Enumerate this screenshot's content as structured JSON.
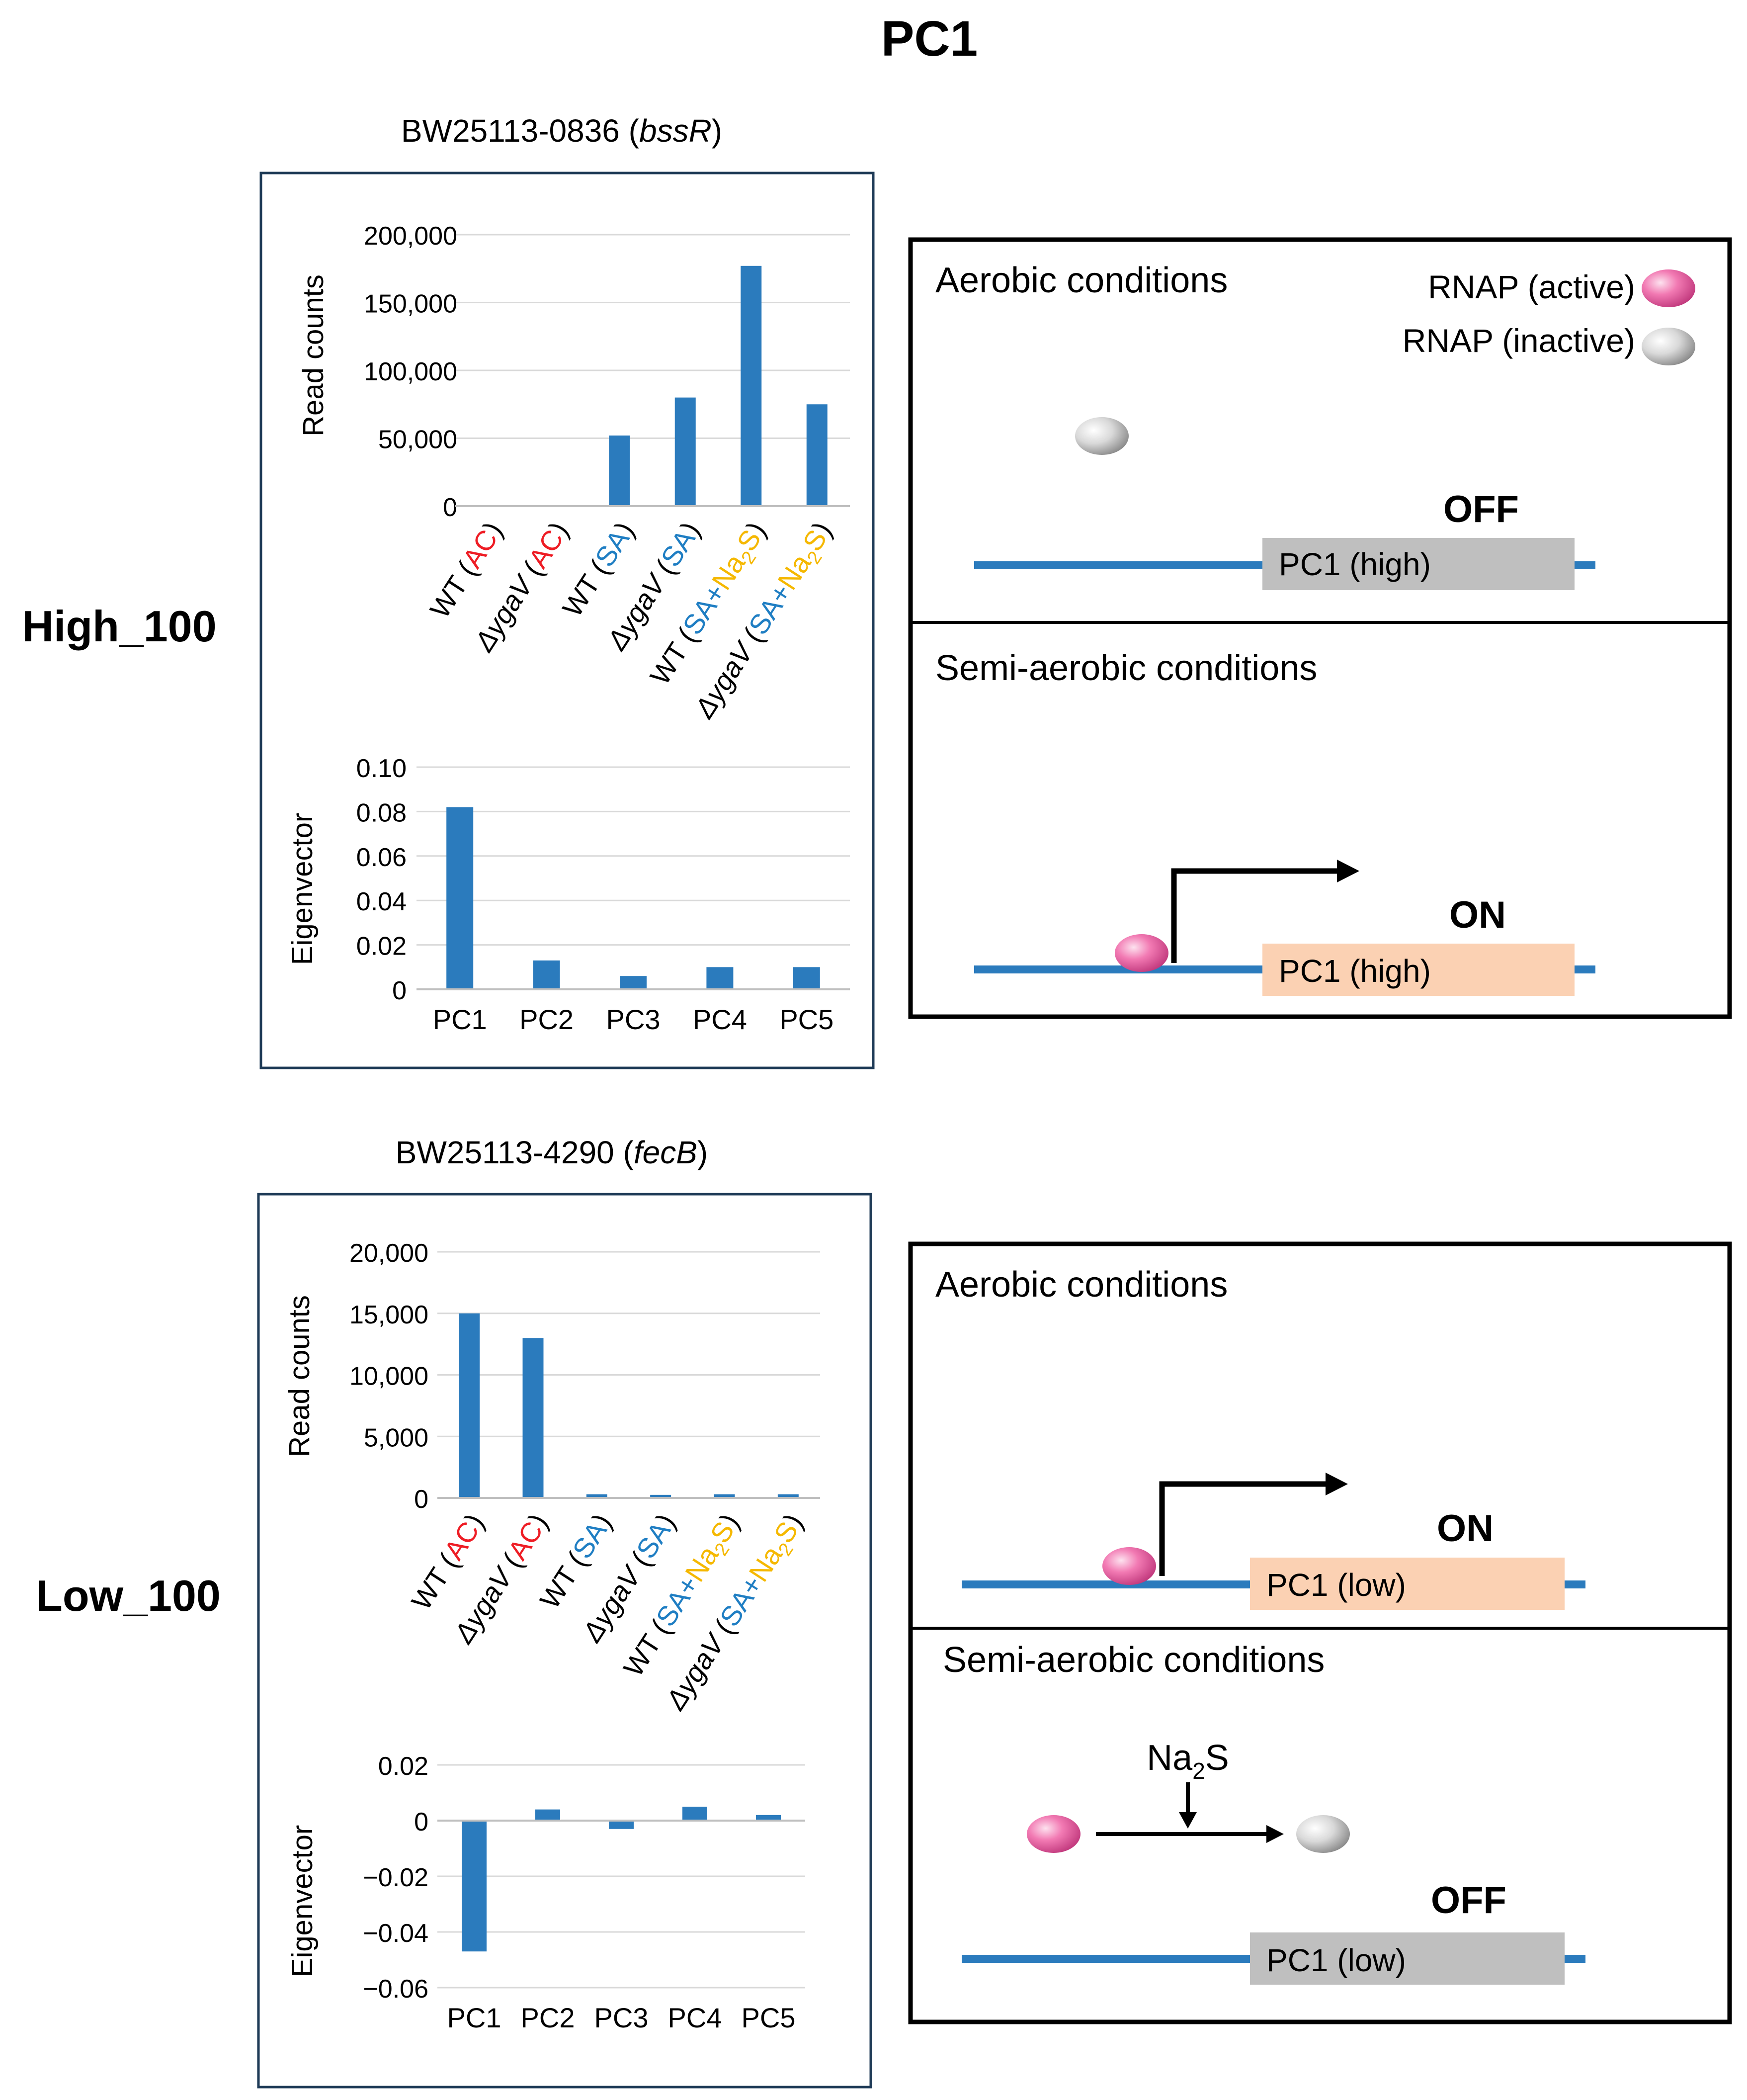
{
  "title": "PC1",
  "rows": [
    {
      "label": "High_100",
      "gene_title": {
        "prefix": "BW25113-0836 (",
        "gene": "bssR",
        "suffix": ")"
      },
      "read_ylabel": "Read counts",
      "eig_ylabel": "Eigenvector",
      "schematic": {
        "panel1": {
          "title": "Aerobic conditions",
          "state": "OFF",
          "gene_label": "PC1 (high)"
        },
        "panel2": {
          "title": "Semi-aerobic conditions",
          "state": "ON",
          "gene_label": "PC1 (high)"
        }
      }
    },
    {
      "label": "Low_100",
      "gene_title": {
        "prefix": "BW25113-4290 (",
        "gene": "fecB",
        "suffix": ")"
      },
      "read_ylabel": "Read counts",
      "eig_ylabel": "Eigenvector",
      "schematic": {
        "panel1": {
          "title": "Aerobic conditions",
          "state": "ON",
          "gene_label": "PC1 (low)"
        },
        "panel2": {
          "title": "Semi-aerobic conditions",
          "state": "OFF",
          "gene_label": "PC1 (low)",
          "inhibitor": {
            "base": "Na",
            "sub": "2",
            "tail": "S"
          }
        }
      }
    }
  ],
  "legend": {
    "active": "RNAP (active)",
    "inactive": "RNAP (inactive)"
  },
  "colors": {
    "bar": "#2b7bbd",
    "ac": "#ee1c24",
    "sa": "#1f7ec3",
    "na2s": "#f5b800",
    "active_rnap": "#f27ab3",
    "inactive_rnap": "#cfcfcf",
    "dna": "#2b7bbd",
    "gene_off": "#bfbfbf",
    "gene_on": "#fbd1b3"
  },
  "chart_data": [
    {
      "type": "bar",
      "categories": [
        "WT (AC)",
        "ΔygaV (AC)",
        "WT (SA)",
        "ΔygaV (SA)",
        "WT (SA+Na2S)",
        "ΔygaV (SA+Na2S)"
      ],
      "values": [
        0,
        0,
        52000,
        80000,
        177000,
        75000
      ],
      "ylabel": "Read counts",
      "ylim": [
        0,
        200000
      ],
      "yticks": [
        "0",
        "50,000",
        "100,000",
        "150,000",
        "200,000"
      ],
      "grid": true
    },
    {
      "type": "bar",
      "categories": [
        "PC1",
        "PC2",
        "PC3",
        "PC4",
        "PC5"
      ],
      "values": [
        0.082,
        0.013,
        0.006,
        0.01,
        0.01
      ],
      "ylabel": "Eigenvector",
      "ylim": [
        0,
        0.1
      ],
      "yticks": [
        "0",
        "0.02",
        "0.04",
        "0.06",
        "0.08",
        "0.10"
      ],
      "grid": true
    },
    {
      "type": "bar",
      "categories": [
        "WT (AC)",
        "ΔygaV (AC)",
        "WT (SA)",
        "ΔygaV (SA)",
        "WT (SA+Na2S)",
        "ΔygaV (SA+Na2S)"
      ],
      "values": [
        15000,
        13000,
        300,
        250,
        300,
        300
      ],
      "ylabel": "Read counts",
      "ylim": [
        0,
        20000
      ],
      "yticks": [
        "0",
        "5,000",
        "10,000",
        "15,000",
        "20,000"
      ],
      "grid": true
    },
    {
      "type": "bar",
      "categories": [
        "PC1",
        "PC2",
        "PC3",
        "PC4",
        "PC5"
      ],
      "values": [
        -0.047,
        0.004,
        -0.003,
        0.005,
        0.002
      ],
      "ylabel": "Eigenvector",
      "ylim": [
        -0.06,
        0.02
      ],
      "yticks": [
        "−0.06",
        "−0.04",
        "−0.02",
        "0",
        "0.02"
      ],
      "grid": true
    }
  ]
}
